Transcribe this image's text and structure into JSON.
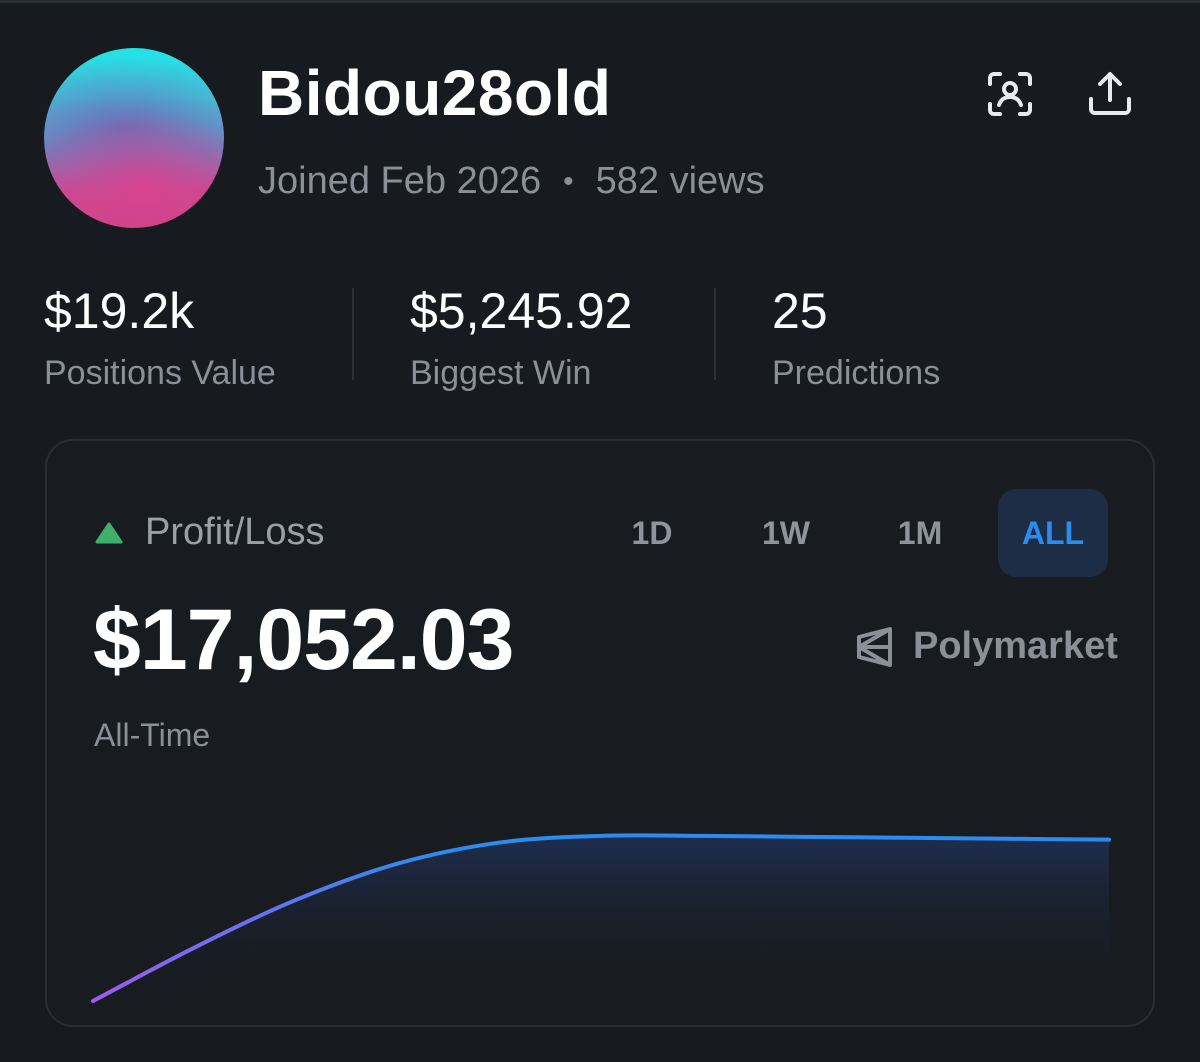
{
  "profile": {
    "username": "Bidou28old",
    "joined": "Joined Feb 2026",
    "separator": "•",
    "views": "582 views",
    "avatar_colors": [
      "#22e2e6",
      "#6a6fb8",
      "#d6438f"
    ]
  },
  "actions": {
    "scan_icon": "scan-face-icon",
    "share_icon": "share-upload-icon"
  },
  "stats": [
    {
      "value": "$19.2k",
      "label": "Positions Value"
    },
    {
      "value": "$5,245.92",
      "label": "Biggest Win"
    },
    {
      "value": "25",
      "label": "Predictions"
    }
  ],
  "pnl": {
    "label": "Profit/Loss",
    "trend_icon": "triangle-up-icon",
    "trend_color": "#3fb06a",
    "ranges": [
      "1D",
      "1W",
      "1M",
      "ALL"
    ],
    "selected_range": "ALL",
    "accent": "#2b8cf0",
    "value": "$17,052.03",
    "period": "All-Time",
    "brand": "Polymarket",
    "brand_icon": "polymarket-logo-icon"
  },
  "chart_data": {
    "type": "area",
    "title": "",
    "xlabel": "",
    "ylabel": "",
    "x": [
      0,
      1,
      2,
      3,
      4,
      5,
      6,
      7,
      8,
      9,
      10
    ],
    "values": [
      0,
      5600,
      10600,
      14400,
      16600,
      17300,
      17300,
      17200,
      17100,
      17000,
      16900
    ],
    "ylim": [
      0,
      22000
    ],
    "grid": false,
    "line_gradient": [
      "#9b5cf0",
      "#2b8cf0"
    ]
  }
}
